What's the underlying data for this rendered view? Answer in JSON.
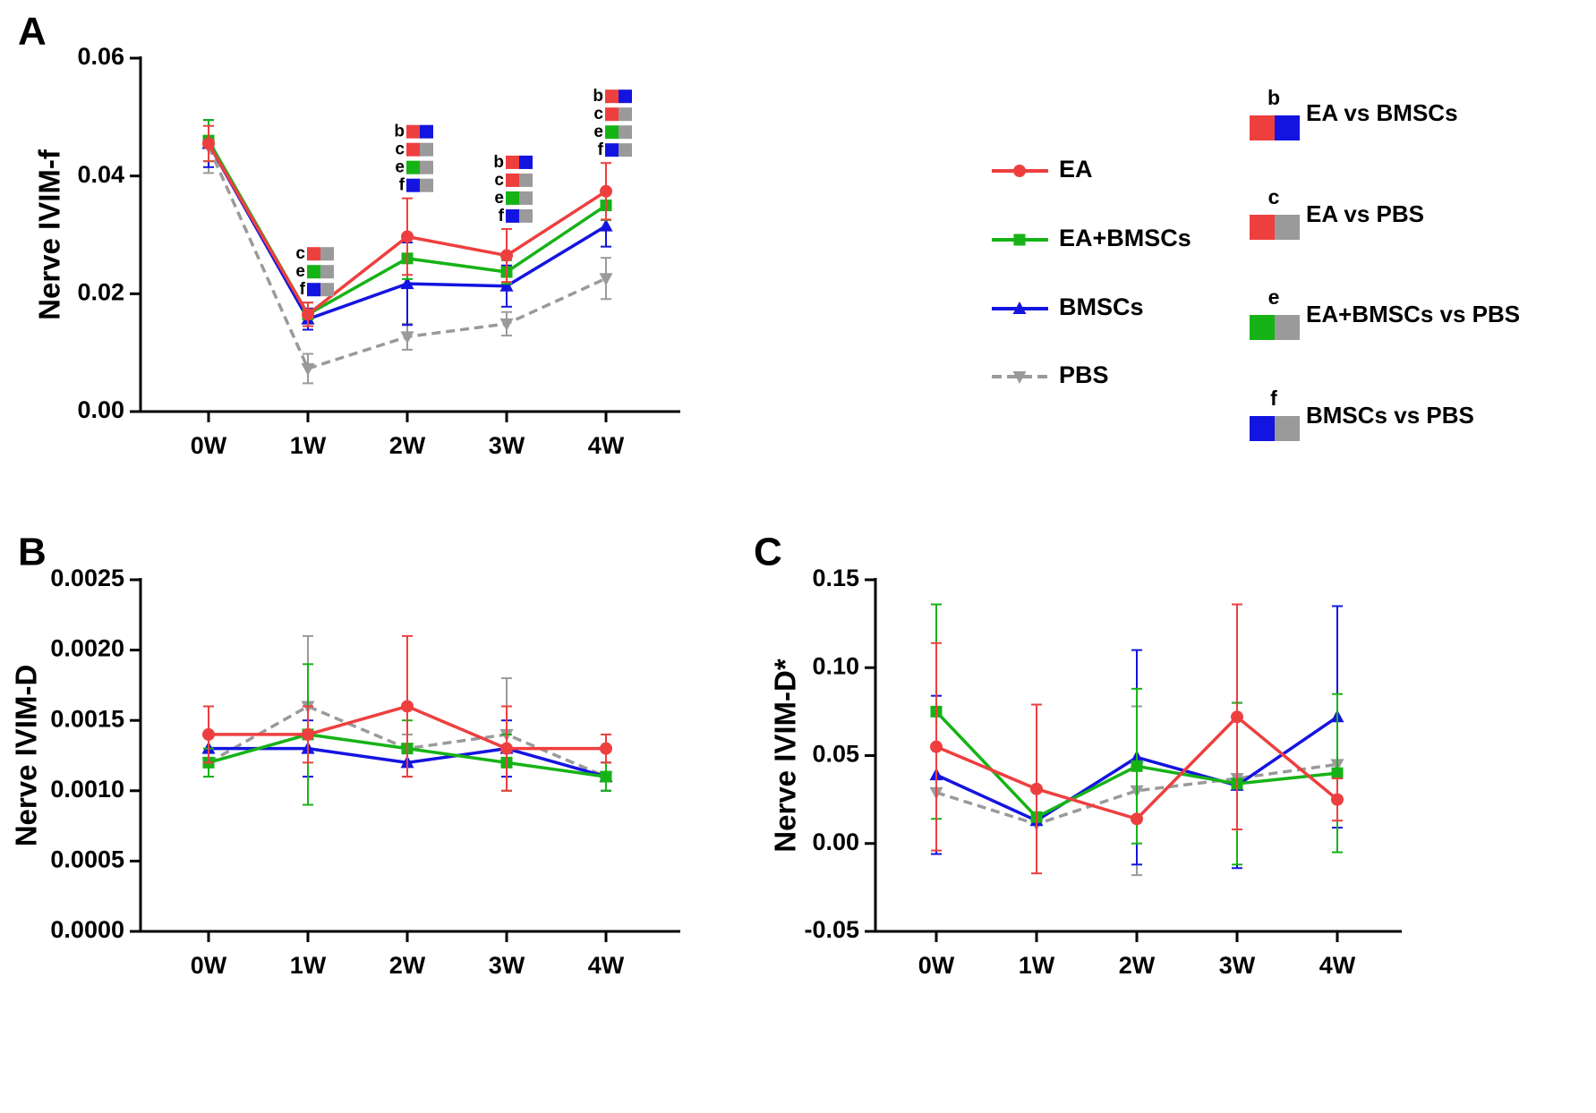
{
  "figure": {
    "series_styles": [
      {
        "name": "EA",
        "color": "#ee3f3f",
        "marker": "circle",
        "dash": false
      },
      {
        "name": "EA+BMSCs",
        "color": "#16b316",
        "marker": "square",
        "dash": false
      },
      {
        "name": "BMSCs",
        "color": "#1414e0",
        "marker": "triangle-up",
        "dash": false
      },
      {
        "name": "PBS",
        "color": "#9a9a9a",
        "marker": "triangle-down",
        "dash": true
      }
    ],
    "group_colors": {
      "EA": "#ee3f3f",
      "EA+BMSCs": "#16b316",
      "BMSCs": "#1414e0",
      "PBS": "#9a9a9a"
    },
    "comparison_key": [
      {
        "letter": "b",
        "label": "EA vs BMSCs",
        "left": "EA",
        "right": "BMSCs"
      },
      {
        "letter": "c",
        "label": "EA vs PBS",
        "left": "EA",
        "right": "PBS"
      },
      {
        "letter": "e",
        "label": "EA+BMSCs vs PBS",
        "left": "EA+BMSCs",
        "right": "PBS"
      },
      {
        "letter": "f",
        "label": "BMSCs vs PBS",
        "left": "BMSCs",
        "right": "PBS"
      }
    ]
  },
  "chart_data": [
    {
      "panel": "A",
      "type": "line",
      "categories": [
        "0W",
        "1W",
        "2W",
        "3W",
        "4W"
      ],
      "ylabel": "Nerve IVIM-f",
      "xlabel": "",
      "ylim": [
        0,
        0.06
      ],
      "yticks": [
        0,
        0.02,
        0.04,
        0.06
      ],
      "ytick_labels": [
        "0.00",
        "0.02",
        "0.04",
        "0.06"
      ],
      "legend": "right",
      "series": [
        {
          "name": "EA",
          "values": [
            0.0455,
            0.0165,
            0.0297,
            0.0265,
            0.0374
          ],
          "errors": [
            0.003,
            0.002,
            0.0065,
            0.0045,
            0.0048
          ]
        },
        {
          "name": "EA+BMSCs",
          "values": [
            0.046,
            0.0165,
            0.026,
            0.0237,
            0.035
          ],
          "errors": [
            0.0035,
            0.002,
            0.0035,
            0.002,
            0.0025
          ]
        },
        {
          "name": "BMSCs",
          "values": [
            0.0455,
            0.0157,
            0.0217,
            0.0213,
            0.0315
          ],
          "errors": [
            0.004,
            0.0018,
            0.007,
            0.0035,
            0.0035
          ]
        },
        {
          "name": "PBS",
          "values": [
            0.045,
            0.0073,
            0.0127,
            0.0149,
            0.0226
          ],
          "errors": [
            0.0045,
            0.0025,
            0.0022,
            0.002,
            0.0035
          ]
        }
      ],
      "significance": [
        {
          "category": "0W",
          "letters": []
        },
        {
          "category": "1W",
          "letters": [
            "c",
            "e",
            "f"
          ]
        },
        {
          "category": "2W",
          "letters": [
            "b",
            "c",
            "e",
            "f"
          ]
        },
        {
          "category": "3W",
          "letters": [
            "b",
            "c",
            "e",
            "f"
          ]
        },
        {
          "category": "4W",
          "letters": [
            "b",
            "c",
            "e",
            "f"
          ]
        }
      ]
    },
    {
      "panel": "B",
      "type": "line",
      "categories": [
        "0W",
        "1W",
        "2W",
        "3W",
        "4W"
      ],
      "ylabel": "Nerve IVIM-D",
      "xlabel": "",
      "ylim": [
        0,
        0.0025
      ],
      "yticks": [
        0,
        0.0005,
        0.001,
        0.0015,
        0.002,
        0.0025
      ],
      "ytick_labels": [
        "0.0000",
        "0.0005",
        "0.0010",
        "0.0015",
        "0.0020",
        "0.0025"
      ],
      "series": [
        {
          "name": "EA",
          "values": [
            0.0014,
            0.0014,
            0.0016,
            0.0013,
            0.0013
          ],
          "errors": [
            0.0002,
            0.0002,
            0.0005,
            0.0003,
            0.0001
          ]
        },
        {
          "name": "EA+BMSCs",
          "values": [
            0.0012,
            0.0014,
            0.0013,
            0.0012,
            0.0011
          ],
          "errors": [
            0.0001,
            0.0005,
            0.0002,
            0.0002,
            0.0001
          ]
        },
        {
          "name": "BMSCs",
          "values": [
            0.0013,
            0.0013,
            0.0012,
            0.0013,
            0.0011
          ],
          "errors": [
            0.0001,
            0.0002,
            0.0001,
            0.0002,
            0.0001
          ]
        },
        {
          "name": "PBS",
          "values": [
            0.0012,
            0.0016,
            0.0013,
            0.0014,
            0.0011
          ],
          "errors": [
            0.0001,
            0.0005,
            0.0001,
            0.0004,
            0.0001
          ]
        }
      ]
    },
    {
      "panel": "C",
      "type": "line",
      "categories": [
        "0W",
        "1W",
        "2W",
        "3W",
        "4W"
      ],
      "ylabel": "Nerve IVIM-D*",
      "xlabel": "",
      "ylim": [
        -0.05,
        0.15
      ],
      "yticks": [
        -0.05,
        0,
        0.05,
        0.1,
        0.15
      ],
      "ytick_labels": [
        "-0.05",
        "0.00",
        "0.05",
        "0.10",
        "0.15"
      ],
      "series": [
        {
          "name": "EA",
          "values": [
            0.055,
            0.031,
            0.014,
            0.072,
            0.025
          ],
          "errors": [
            0.059,
            0.048,
            0.0,
            0.064,
            0.012
          ]
        },
        {
          "name": "EA+BMSCs",
          "values": [
            0.075,
            0.015,
            0.044,
            0.034,
            0.04
          ],
          "errors": [
            0.061,
            0.0,
            0.044,
            0.046,
            0.045
          ]
        },
        {
          "name": "BMSCs",
          "values": [
            0.039,
            0.013,
            0.049,
            0.033,
            0.072
          ],
          "errors": [
            0.045,
            0.0,
            0.061,
            0.047,
            0.063
          ]
        },
        {
          "name": "PBS",
          "values": [
            0.029,
            0.011,
            0.03,
            0.037,
            0.045
          ],
          "errors": [
            0.0,
            0.0,
            0.048,
            0.0,
            0.0
          ]
        }
      ]
    }
  ]
}
